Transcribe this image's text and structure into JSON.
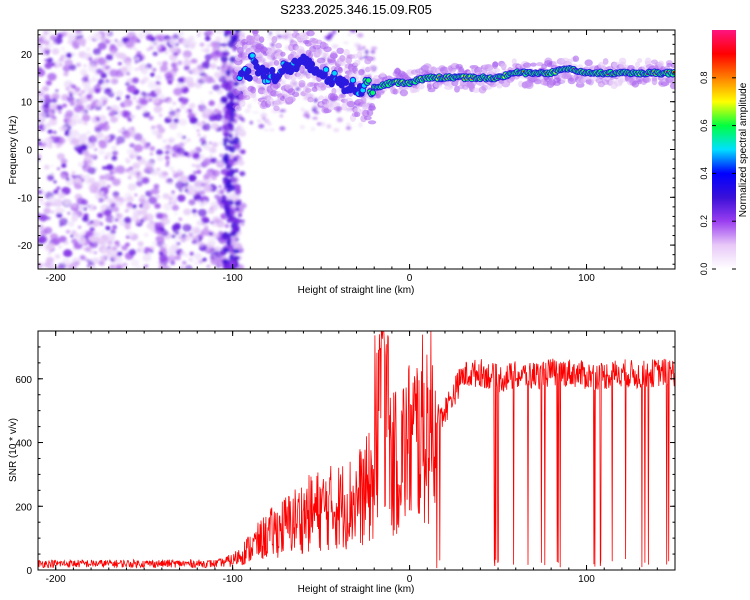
{
  "title": "S233.2025.346.15.09.R05",
  "chart_data": [
    {
      "type": "heatmap",
      "xlabel": "Height of straight line (km)",
      "ylabel": "Frequency (Hz)",
      "xlim": [
        -210,
        150
      ],
      "ylim": [
        -25,
        25
      ],
      "xticks": [
        -200,
        -100,
        0,
        100
      ],
      "yticks": [
        -20,
        -10,
        0,
        10,
        20
      ],
      "colorbar": {
        "label": "Normalized spectral amplitude",
        "range": [
          0.0,
          1.0
        ],
        "ticks": [
          0.0,
          0.2,
          0.4,
          0.6,
          0.8
        ],
        "tick_labels": [
          "0.0",
          "0.2",
          "0.4",
          "0.6",
          "0.8"
        ],
        "colormap": [
          "#ffffff",
          "#e8c8f8",
          "#9a3ef0",
          "#3a10d8",
          "#0000ff",
          "#00e0ff",
          "#00ff40",
          "#ffff00",
          "#ff8000",
          "#ff0000",
          "#ff1480"
        ]
      },
      "signal_track": {
        "x": [
          -90,
          -80,
          -70,
          -60,
          -50,
          -40,
          -30,
          -20,
          -10,
          0,
          10,
          20,
          30,
          40,
          50,
          60,
          70,
          80,
          90,
          100,
          110,
          120,
          130,
          140,
          150
        ],
        "frequency": [
          19,
          15,
          17,
          18,
          16,
          14,
          13,
          13,
          14,
          14,
          15,
          15,
          15,
          15,
          15,
          16,
          16,
          16,
          17,
          16,
          16,
          16,
          16,
          16,
          16
        ]
      }
    },
    {
      "type": "line",
      "xlabel": "Height of straight line (km)",
      "ylabel": "SNR (10 * v/v)",
      "xlim": [
        -210,
        150
      ],
      "ylim": [
        0,
        750
      ],
      "xticks": [
        -200,
        -100,
        0,
        100
      ],
      "yticks": [
        0,
        200,
        400,
        600
      ],
      "color": "#ff0000",
      "series": [
        {
          "name": "SNR",
          "x": [
            -210,
            -190,
            -170,
            -150,
            -130,
            -110,
            -100,
            -90,
            -80,
            -70,
            -60,
            -50,
            -40,
            -30,
            -20,
            -15,
            -10,
            0,
            10,
            20,
            30,
            40,
            50,
            60,
            70,
            80,
            90,
            100,
            110,
            120,
            130,
            140,
            150
          ],
          "values": [
            20,
            20,
            20,
            20,
            20,
            20,
            30,
            70,
            110,
            140,
            170,
            190,
            200,
            220,
            270,
            680,
            320,
            400,
            450,
            500,
            610,
            620,
            600,
            610,
            610,
            620,
            620,
            610,
            610,
            620,
            610,
            620,
            620
          ]
        }
      ]
    }
  ]
}
